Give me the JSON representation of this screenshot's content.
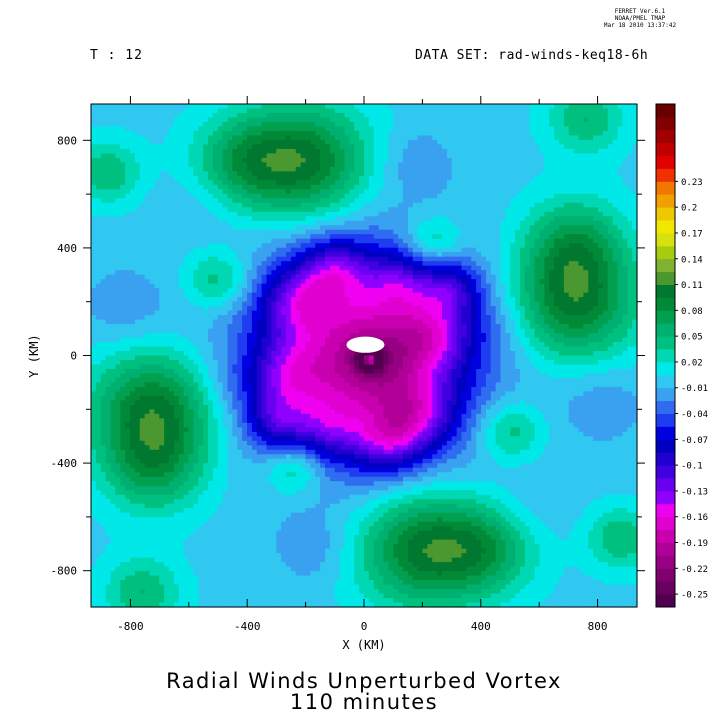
{
  "header": {
    "ferret_lines": [
      "FERRET  Ver.6.1",
      "NOAA/PMEL TMAP",
      "Mar 18 2010 13:37:42"
    ],
    "time_label": "T : 12",
    "dataset_label": "DATA SET: rad-winds-keq18-6h"
  },
  "chart_data": {
    "type": "heatmap",
    "title": "Radial Winds Unperturbed Vortex",
    "subtitle": "110 minutes",
    "xlabel": "X (KM)",
    "ylabel": "Y (KM)",
    "xlim": [
      -935,
      935
    ],
    "ylim": [
      -935,
      935
    ],
    "x_ticks": [
      -800,
      -400,
      0,
      400,
      800
    ],
    "y_ticks": [
      -800,
      -400,
      0,
      400,
      800
    ],
    "colorbar": {
      "levels": [
        -0.25,
        -0.235,
        -0.22,
        -0.205,
        -0.19,
        -0.175,
        -0.16,
        -0.145,
        -0.13,
        -0.115,
        -0.1,
        -0.085,
        -0.07,
        -0.055,
        -0.04,
        -0.025,
        -0.01,
        0.005,
        0.02,
        0.035,
        0.05,
        0.065,
        0.08,
        0.095,
        0.11,
        0.125,
        0.14,
        0.155,
        0.17,
        0.185,
        0.2,
        0.215,
        0.23,
        0.245
      ],
      "labels": [
        "-0.25",
        "-0.22",
        "-0.19",
        "-0.16",
        "-0.13",
        "-0.1",
        "-0.07",
        "-0.04",
        "-0.01",
        "0.02",
        "0.05",
        "0.08",
        "0.11",
        "0.14",
        "0.17",
        "0.2",
        "0.23"
      ],
      "colors": [
        "#50004e",
        "#68005f",
        "#800070",
        "#980084",
        "#b00098",
        "#c800b0",
        "#e000d0",
        "#f000f0",
        "#9000ff",
        "#6a00f0",
        "#4000e0",
        "#2000d0",
        "#0000c0",
        "#0000e0",
        "#1e3cf0",
        "#2f6cf0",
        "#3aa0f0",
        "#30c8f0",
        "#00e8e8",
        "#00d8b4",
        "#00c080",
        "#00b070",
        "#00a050",
        "#008a38",
        "#007830",
        "#4c9830",
        "#7eb230",
        "#a6cc10",
        "#d8e010",
        "#f0e800",
        "#f0c800",
        "#f0a000",
        "#f07800",
        "#f03000",
        "#e00000",
        "#c00000",
        "#a00000",
        "#820000",
        "#680000"
      ]
    },
    "field": {
      "background": 0.0,
      "features": [
        {
          "x": 0,
          "y": 0,
          "v": -0.16,
          "r": 260
        },
        {
          "x": 40,
          "y": -20,
          "v": -0.06,
          "r": 120
        },
        {
          "x": -220,
          "y": 200,
          "v": -0.07,
          "r": 90
        },
        {
          "x": 180,
          "y": -220,
          "v": -0.07,
          "r": 90
        },
        {
          "x": -260,
          "y": -80,
          "v": -0.06,
          "r": 90
        },
        {
          "x": 240,
          "y": 80,
          "v": -0.06,
          "r": 90
        },
        {
          "x": -100,
          "y": 320,
          "v": -0.07,
          "r": 80
        },
        {
          "x": 80,
          "y": -320,
          "v": -0.07,
          "r": 80
        },
        {
          "x": 120,
          "y": 270,
          "v": -0.05,
          "r": 80
        },
        {
          "x": -120,
          "y": -270,
          "v": -0.05,
          "r": 80
        },
        {
          "x": 300,
          "y": 250,
          "v": -0.06,
          "r": 70
        },
        {
          "x": -300,
          "y": -250,
          "v": -0.06,
          "r": 70
        },
        {
          "x": 20,
          "y": -15,
          "v": -0.12,
          "r": 30
        },
        {
          "x": 20,
          "y": -15,
          "v": 0.18,
          "r": 14
        },
        {
          "x": -200,
          "y": 720,
          "v": 0.1,
          "r": 150
        },
        {
          "x": -420,
          "y": 720,
          "v": 0.06,
          "r": 120
        },
        {
          "x": 200,
          "y": -720,
          "v": 0.1,
          "r": 150
        },
        {
          "x": 420,
          "y": -720,
          "v": 0.06,
          "r": 120
        },
        {
          "x": -720,
          "y": -200,
          "v": 0.1,
          "r": 150
        },
        {
          "x": -720,
          "y": -420,
          "v": 0.06,
          "r": 120
        },
        {
          "x": 720,
          "y": 200,
          "v": 0.1,
          "r": 150
        },
        {
          "x": 720,
          "y": 420,
          "v": 0.06,
          "r": 120
        },
        {
          "x": -500,
          "y": 280,
          "v": 0.05,
          "r": 80
        },
        {
          "x": 500,
          "y": -280,
          "v": 0.05,
          "r": 80
        },
        {
          "x": 240,
          "y": 420,
          "v": 0.05,
          "r": 70
        },
        {
          "x": -240,
          "y": -420,
          "v": 0.05,
          "r": 70
        },
        {
          "x": 760,
          "y": 880,
          "v": 0.05,
          "r": 90
        },
        {
          "x": -760,
          "y": -880,
          "v": 0.05,
          "r": 90
        },
        {
          "x": -880,
          "y": 680,
          "v": 0.05,
          "r": 80
        },
        {
          "x": 880,
          "y": -680,
          "v": 0.05,
          "r": 80
        },
        {
          "x": 180,
          "y": 720,
          "v": -0.02,
          "r": 90
        },
        {
          "x": -180,
          "y": -720,
          "v": -0.02,
          "r": 90
        },
        {
          "x": -820,
          "y": 180,
          "v": -0.02,
          "r": 110
        },
        {
          "x": 820,
          "y": -180,
          "v": -0.02,
          "r": 110
        },
        {
          "x": -560,
          "y": 560,
          "v": -0.01,
          "r": 110
        },
        {
          "x": 560,
          "y": -560,
          "v": -0.01,
          "r": 110
        },
        {
          "x": -450,
          "y": -120,
          "v": -0.01,
          "r": 80
        },
        {
          "x": 450,
          "y": 120,
          "v": -0.01,
          "r": 80
        },
        {
          "x": -900,
          "y": -900,
          "v": 0.0,
          "r": 60
        },
        {
          "x": 900,
          "y": 900,
          "v": 0.0,
          "r": 60
        }
      ],
      "blank_patch": {
        "x": 5,
        "y": 40,
        "rx": 65,
        "ry": 30
      }
    }
  }
}
